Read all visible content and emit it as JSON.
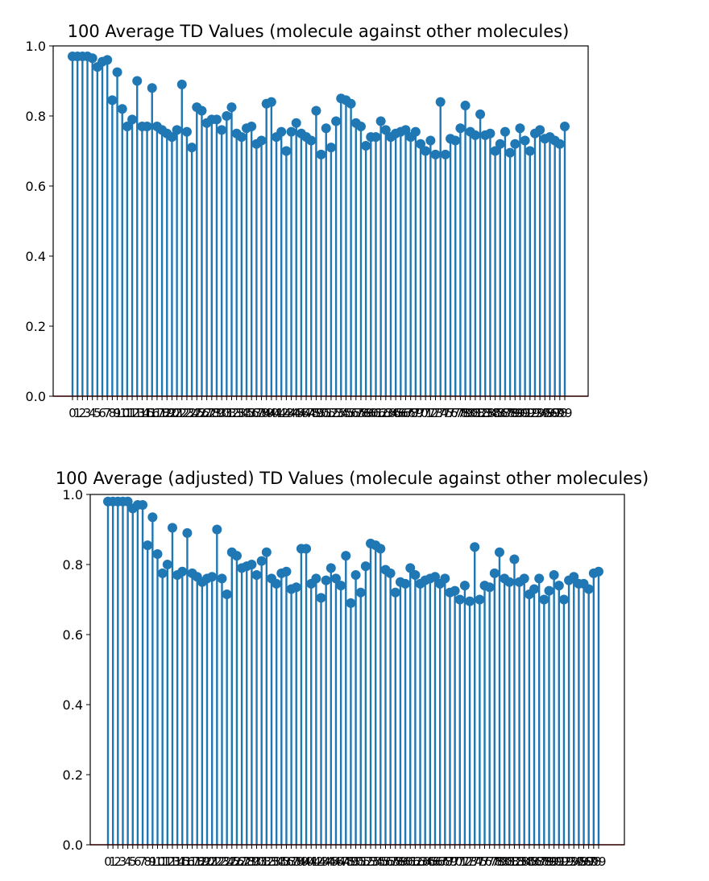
{
  "chart_data": [
    {
      "type": "stem",
      "title": "100 Average TD Values (molecule against other molecules)",
      "xlabel": "",
      "ylabel": "",
      "x_ticks": "0-99",
      "ylim": [
        0,
        1.0
      ],
      "yticks": [
        "0.0",
        "0.2",
        "0.4",
        "0.6",
        "0.8",
        "1.0"
      ],
      "grid": false,
      "color": "#1f77b4",
      "x": [
        0,
        1,
        2,
        3,
        4,
        5,
        6,
        7,
        8,
        9,
        10,
        11,
        12,
        13,
        14,
        15,
        16,
        17,
        18,
        19,
        20,
        21,
        22,
        23,
        24,
        25,
        26,
        27,
        28,
        29,
        30,
        31,
        32,
        33,
        34,
        35,
        36,
        37,
        38,
        39,
        40,
        41,
        42,
        43,
        44,
        45,
        46,
        47,
        48,
        49,
        50,
        51,
        52,
        53,
        54,
        55,
        56,
        57,
        58,
        59,
        60,
        61,
        62,
        63,
        64,
        65,
        66,
        67,
        68,
        69,
        70,
        71,
        72,
        73,
        74,
        75,
        76,
        77,
        78,
        79,
        80,
        81,
        82,
        83,
        84,
        85,
        86,
        87,
        88,
        89,
        90,
        91,
        92,
        93,
        94,
        95,
        96,
        97,
        98,
        99
      ],
      "values": [
        0.97,
        0.97,
        0.97,
        0.97,
        0.965,
        0.94,
        0.955,
        0.96,
        0.845,
        0.925,
        0.82,
        0.77,
        0.79,
        0.9,
        0.77,
        0.77,
        0.88,
        0.77,
        0.76,
        0.75,
        0.74,
        0.76,
        0.89,
        0.755,
        0.71,
        0.825,
        0.815,
        0.78,
        0.79,
        0.79,
        0.76,
        0.8,
        0.825,
        0.75,
        0.74,
        0.765,
        0.77,
        0.72,
        0.73,
        0.835,
        0.84,
        0.74,
        0.755,
        0.7,
        0.755,
        0.78,
        0.75,
        0.74,
        0.73,
        0.815,
        0.69,
        0.765,
        0.71,
        0.785,
        0.85,
        0.845,
        0.835,
        0.78,
        0.77,
        0.715,
        0.74,
        0.74,
        0.785,
        0.76,
        0.74,
        0.75,
        0.755,
        0.76,
        0.74,
        0.755,
        0.72,
        0.7,
        0.73,
        0.69,
        0.84,
        0.69,
        0.735,
        0.73,
        0.765,
        0.83,
        0.755,
        0.745,
        0.805,
        0.745,
        0.75,
        0.7,
        0.72,
        0.755,
        0.695,
        0.72,
        0.765,
        0.73,
        0.7,
        0.75,
        0.76,
        0.735,
        0.74,
        0.73,
        0.72,
        0.77
      ]
    },
    {
      "type": "stem",
      "title": "100 Average (adjusted) TD Values (molecule against other molecules)",
      "xlabel": "",
      "ylabel": "",
      "x_ticks": "0-99",
      "ylim": [
        0,
        1.0
      ],
      "yticks": [
        "0.0",
        "0.2",
        "0.4",
        "0.6",
        "0.8",
        "1.0"
      ],
      "grid": false,
      "color": "#1f77b4",
      "x": [
        0,
        1,
        2,
        3,
        4,
        5,
        6,
        7,
        8,
        9,
        10,
        11,
        12,
        13,
        14,
        15,
        16,
        17,
        18,
        19,
        20,
        21,
        22,
        23,
        24,
        25,
        26,
        27,
        28,
        29,
        30,
        31,
        32,
        33,
        34,
        35,
        36,
        37,
        38,
        39,
        40,
        41,
        42,
        43,
        44,
        45,
        46,
        47,
        48,
        49,
        50,
        51,
        52,
        53,
        54,
        55,
        56,
        57,
        58,
        59,
        60,
        61,
        62,
        63,
        64,
        65,
        66,
        67,
        68,
        69,
        70,
        71,
        72,
        73,
        74,
        75,
        76,
        77,
        78,
        79,
        80,
        81,
        82,
        83,
        84,
        85,
        86,
        87,
        88,
        89,
        90,
        91,
        92,
        93,
        94,
        95,
        96,
        97,
        98,
        99
      ],
      "values": [
        0.98,
        0.98,
        0.98,
        0.98,
        0.98,
        0.96,
        0.97,
        0.97,
        0.855,
        0.935,
        0.83,
        0.775,
        0.8,
        0.905,
        0.77,
        0.78,
        0.89,
        0.775,
        0.765,
        0.75,
        0.76,
        0.765,
        0.9,
        0.76,
        0.715,
        0.835,
        0.825,
        0.79,
        0.795,
        0.8,
        0.77,
        0.81,
        0.835,
        0.76,
        0.745,
        0.775,
        0.78,
        0.73,
        0.735,
        0.845,
        0.845,
        0.745,
        0.76,
        0.705,
        0.755,
        0.79,
        0.76,
        0.74,
        0.825,
        0.69,
        0.77,
        0.72,
        0.795,
        0.86,
        0.855,
        0.845,
        0.785,
        0.775,
        0.72,
        0.75,
        0.745,
        0.79,
        0.77,
        0.745,
        0.755,
        0.76,
        0.765,
        0.745,
        0.76,
        0.72,
        0.725,
        0.7,
        0.74,
        0.695,
        0.85,
        0.7,
        0.74,
        0.735,
        0.775,
        0.835,
        0.76,
        0.75,
        0.815,
        0.75,
        0.76,
        0.715,
        0.73,
        0.76,
        0.7,
        0.725,
        0.77,
        0.74,
        0.7,
        0.755,
        0.765,
        0.745,
        0.745,
        0.73,
        0.775,
        0.78
      ]
    }
  ]
}
